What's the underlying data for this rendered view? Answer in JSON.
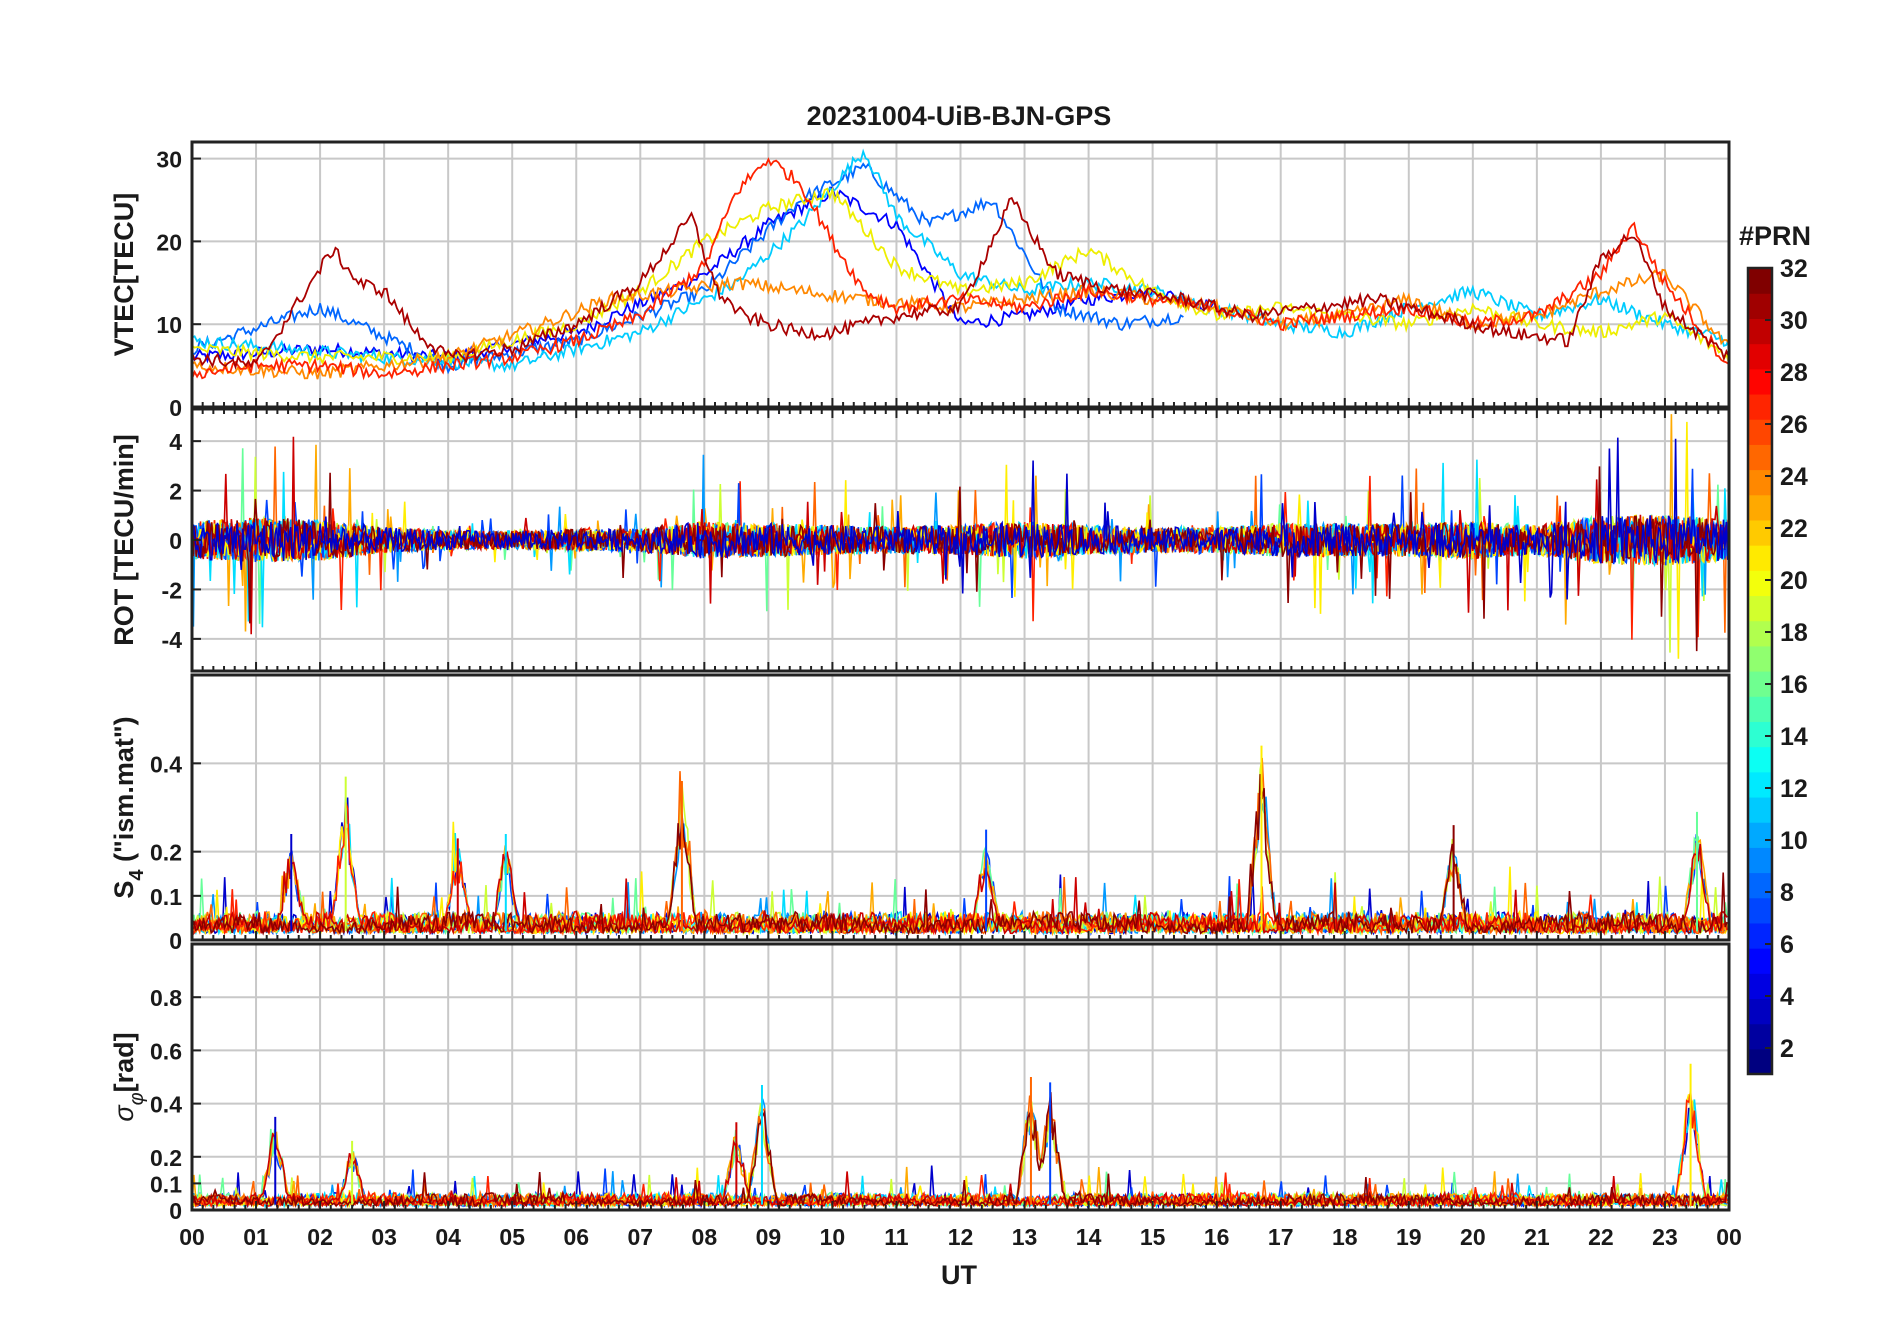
{
  "figure": {
    "title": "20231004-UiB-BJN-GPS",
    "xlabel": "UT",
    "x_tick_labels": [
      "00",
      "01",
      "02",
      "03",
      "04",
      "05",
      "06",
      "07",
      "08",
      "09",
      "10",
      "11",
      "12",
      "13",
      "14",
      "15",
      "16",
      "17",
      "18",
      "19",
      "20",
      "21",
      "22",
      "23",
      "00"
    ]
  },
  "colorbar": {
    "title": "#PRN",
    "tick_labels": [
      "2",
      "4",
      "6",
      "8",
      "10",
      "12",
      "14",
      "16",
      "18",
      "20",
      "22",
      "24",
      "26",
      "28",
      "30",
      "32"
    ],
    "range": [
      1,
      32
    ],
    "colormap": "jet"
  },
  "chart_data": [
    {
      "type": "line",
      "panel": "vtec",
      "ylabel": "VTEC[TECU]",
      "xlim": [
        0,
        24
      ],
      "ylim": [
        0,
        32
      ],
      "yticks": [
        0,
        10,
        20,
        30
      ],
      "ytick_labels": [
        "0",
        "10",
        "20",
        "30"
      ],
      "grid": true,
      "x_unit": "hours UT",
      "series": [
        {
          "prn": 3,
          "color": "#0000ff",
          "x": [
            0,
            2,
            4,
            6,
            8,
            9,
            10,
            11,
            12,
            13,
            14,
            15,
            16
          ],
          "values": [
            6,
            7,
            6,
            9,
            16,
            22,
            26,
            22,
            10,
            11,
            13,
            14,
            12
          ]
        },
        {
          "prn": 7,
          "color": "#0066ff",
          "x": [
            0,
            2,
            4,
            6,
            8,
            9.5,
            10.5,
            11.5,
            12.5,
            13.5,
            14.5,
            15.5
          ],
          "values": [
            7,
            12,
            5,
            8,
            14,
            25,
            29,
            22,
            25,
            12,
            10,
            11
          ]
        },
        {
          "prn": 11,
          "color": "#00ccff",
          "x": [
            0,
            3,
            5,
            7,
            8.5,
            9.5,
            10.5,
            11,
            12,
            13,
            14,
            15,
            16,
            17,
            18,
            19,
            20,
            21,
            22,
            23,
            24
          ],
          "values": [
            8,
            6,
            5,
            9,
            15,
            22,
            31,
            23,
            16,
            14,
            15,
            14,
            12,
            10,
            9,
            12,
            14,
            11,
            13,
            10,
            8
          ]
        },
        {
          "prn": 19,
          "color": "#eeee00",
          "x": [
            0,
            2,
            4,
            6,
            7,
            8,
            9,
            10,
            11,
            12,
            13,
            14,
            15,
            16,
            17,
            18,
            19,
            20,
            21,
            22,
            23,
            24
          ],
          "values": [
            7,
            6,
            6,
            10,
            14,
            20,
            24,
            26,
            17,
            14,
            15,
            19,
            14,
            11,
            12,
            11,
            10,
            12,
            10,
            9,
            11,
            6
          ]
        },
        {
          "prn": 24,
          "color": "#ff8800",
          "x": [
            0,
            2,
            4,
            5.5,
            6.5,
            7.5,
            8.5,
            9.5,
            10.5,
            12,
            14,
            16,
            17,
            18,
            19,
            20,
            21,
            22,
            23,
            24
          ],
          "values": [
            5,
            4,
            6,
            10,
            13,
            14,
            15,
            14,
            13,
            12,
            14,
            12,
            10,
            11,
            13,
            10,
            11,
            14,
            16,
            7
          ]
        },
        {
          "prn": 28,
          "color": "#ff2200",
          "x": [
            0,
            1,
            2,
            3,
            4,
            5,
            6,
            7,
            8,
            8.5,
            9,
            9.5,
            10,
            10.5,
            11,
            12,
            13,
            14,
            15,
            16,
            17,
            18,
            19,
            20,
            21,
            22,
            22.5,
            23,
            23.5,
            24
          ],
          "values": [
            4,
            5,
            5,
            4,
            5,
            6,
            8,
            11,
            17,
            26,
            30,
            27,
            20,
            14,
            12,
            13,
            12,
            14,
            13,
            12,
            10,
            11,
            12,
            10,
            11,
            16,
            22,
            15,
            10,
            5
          ]
        },
        {
          "prn": 31,
          "color": "#aa0000",
          "x": [
            0,
            1,
            2.2,
            2.6,
            3,
            3.5,
            4,
            5,
            6,
            7,
            7.8,
            8.2,
            8.6,
            9,
            9.5,
            10,
            11,
            12,
            12.8,
            13.5,
            14.5,
            15.5,
            16.5,
            17.5,
            18.5,
            19.5,
            20.5,
            21.5,
            22,
            22.5,
            23,
            24
          ],
          "values": [
            6,
            5,
            19,
            15,
            14,
            9,
            6,
            7,
            10,
            15,
            23,
            14,
            11,
            10,
            9,
            9,
            11,
            12,
            25,
            16,
            14,
            13,
            11,
            12,
            13,
            11,
            9,
            8,
            18,
            21,
            12,
            6
          ]
        }
      ]
    },
    {
      "type": "line",
      "panel": "rot",
      "ylabel": "ROT [TECU/min]",
      "xlim": [
        0,
        24
      ],
      "ylim": [
        -5.3,
        5.3
      ],
      "yticks": [
        -4,
        -2,
        0,
        2,
        4
      ],
      "ytick_labels": [
        "-4",
        "-2",
        "0",
        "2",
        "4"
      ],
      "grid": true,
      "activity_profile": {
        "x": [
          0,
          1,
          2,
          3,
          4,
          5,
          6,
          7,
          8,
          9,
          10,
          11,
          12,
          13,
          14,
          15,
          16,
          17,
          18,
          19,
          20,
          21,
          22,
          23,
          24
        ],
        "amplitude": [
          3.5,
          4.5,
          4,
          2,
          1.2,
          1,
          1.5,
          1.6,
          3.5,
          3,
          2.5,
          2.2,
          2.5,
          3.5,
          2.5,
          2,
          2,
          3,
          3,
          3,
          3.5,
          2.5,
          5,
          5.3,
          4
        ]
      }
    },
    {
      "type": "line",
      "panel": "s4",
      "ylabel_main": "S",
      "ylabel_sub": "4",
      "ylabel_rest": " (\"ism.mat\")",
      "xlim": [
        0,
        24
      ],
      "ylim": [
        0,
        0.6
      ],
      "yticks": [
        0,
        0.1,
        0.2,
        0.4
      ],
      "ytick_labels": [
        "0",
        "0.1",
        "0.2",
        "0.4"
      ],
      "grid": true,
      "peaks": [
        {
          "x": 1.55,
          "value": 0.24
        },
        {
          "x": 2.4,
          "value": 0.37
        },
        {
          "x": 4.15,
          "value": 0.23
        },
        {
          "x": 4.9,
          "value": 0.24
        },
        {
          "x": 7.65,
          "value": 0.36
        },
        {
          "x": 12.4,
          "value": 0.25
        },
        {
          "x": 16.7,
          "value": 0.44
        },
        {
          "x": 19.7,
          "value": 0.26
        },
        {
          "x": 23.5,
          "value": 0.29
        }
      ]
    },
    {
      "type": "line",
      "panel": "sigma_phi",
      "ylabel_main": "σ",
      "ylabel_sub": "φ",
      "ylabel_rest": "[rad]",
      "xlim": [
        0,
        24
      ],
      "ylim": [
        0,
        1
      ],
      "yticks": [
        0,
        0.1,
        0.2,
        0.4,
        0.6,
        0.8
      ],
      "ytick_labels": [
        "0",
        "0.1",
        "0.2",
        "0.4",
        "0.6",
        "0.8"
      ],
      "grid": true,
      "peaks": [
        {
          "x": 1.3,
          "value": 0.35
        },
        {
          "x": 2.5,
          "value": 0.26
        },
        {
          "x": 8.5,
          "value": 0.33
        },
        {
          "x": 8.9,
          "value": 0.47
        },
        {
          "x": 13.1,
          "value": 0.5
        },
        {
          "x": 13.4,
          "value": 0.48
        },
        {
          "x": 23.4,
          "value": 0.55
        }
      ]
    }
  ]
}
